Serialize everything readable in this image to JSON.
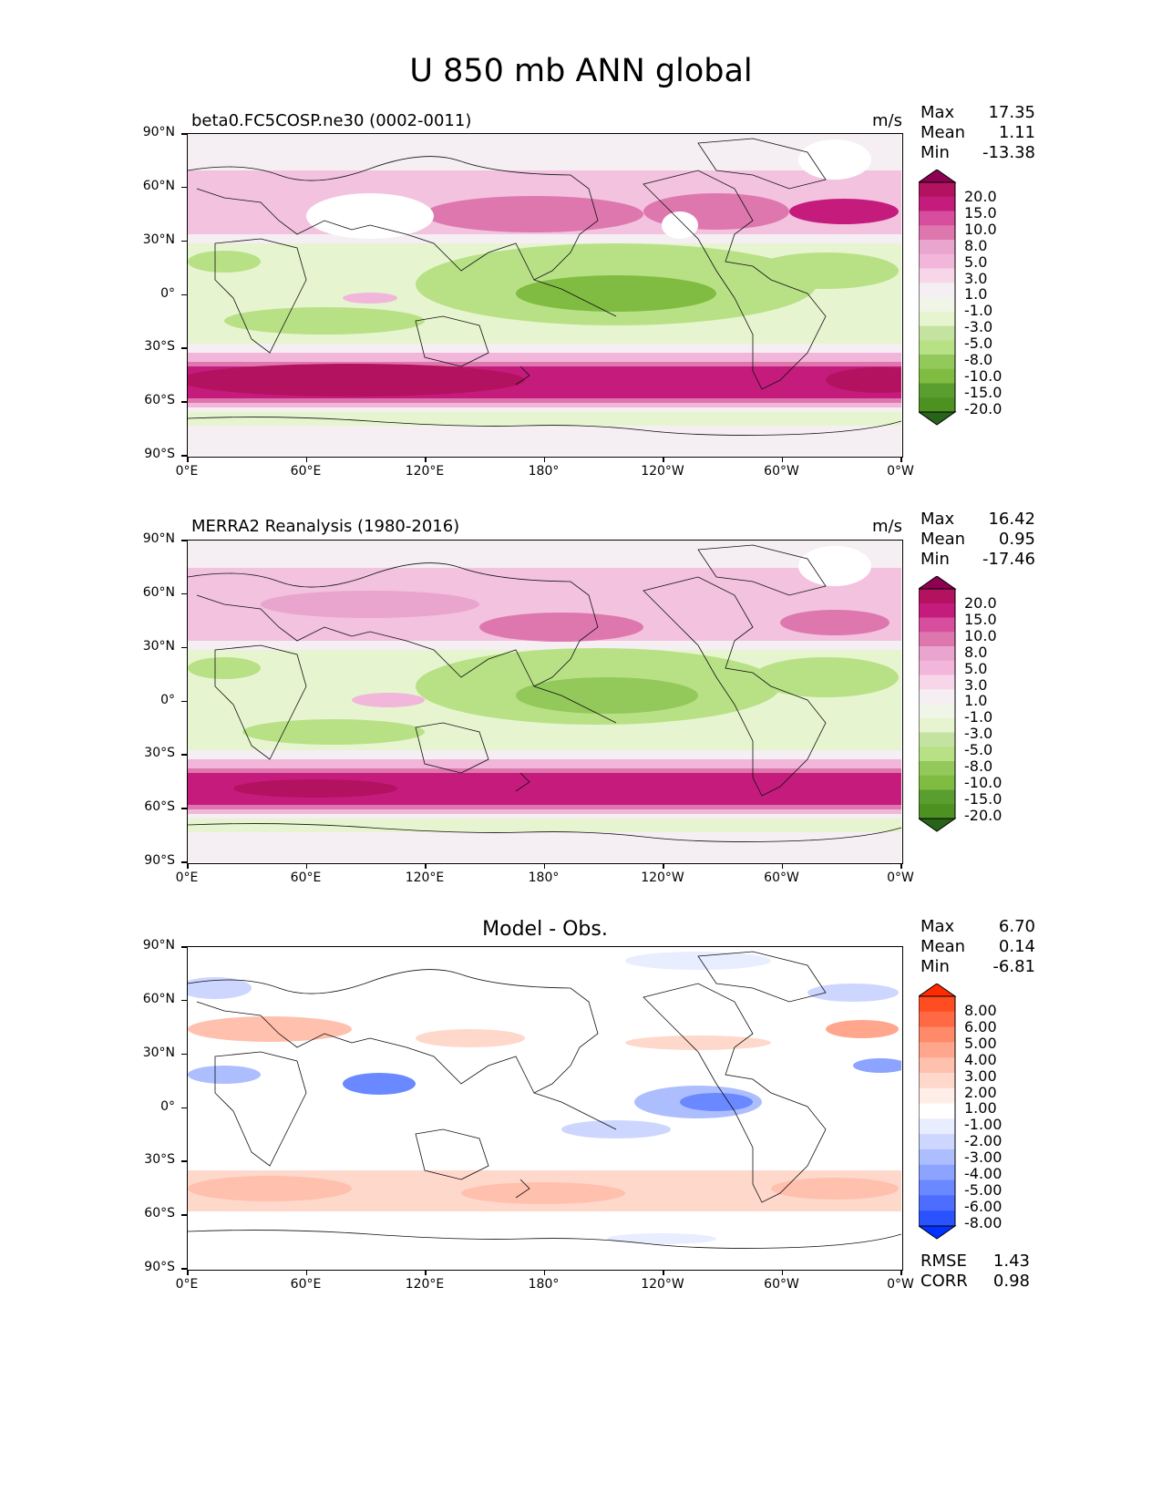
{
  "title": "U 850 mb ANN global",
  "panels": [
    {
      "id": "model",
      "title": "beta0.FC5COSP.ne30 (0002-0011)",
      "units": "m/s",
      "stats": [
        {
          "label": "Max",
          "value": "17.35"
        },
        {
          "label": "Mean",
          "value": "1.11"
        },
        {
          "label": "Min",
          "value": "-13.38"
        }
      ],
      "colorbar": {
        "labels": [
          "20.0",
          "15.0",
          "10.0",
          "8.0",
          "5.0",
          "3.0",
          "1.0",
          "-1.0",
          "-3.0",
          "-5.0",
          "-8.0",
          "-10.0",
          "-15.0",
          "-20.0"
        ],
        "colors": [
          "#8e0152",
          "#b2125f",
          "#c51b7d",
          "#d74e9e",
          "#de77ae",
          "#eaa5ce",
          "#f1b6da",
          "#f7d6ea",
          "#f5eef2",
          "#f0f5e8",
          "#e6f5d0",
          "#c5e3a0",
          "#b8e186",
          "#93c85a",
          "#7fbc41",
          "#5a9e30",
          "#4d9221",
          "#276419"
        ],
        "extend": "both"
      }
    },
    {
      "id": "obs",
      "title": "MERRA2 Reanalysis (1980-2016)",
      "units": "m/s",
      "stats": [
        {
          "label": "Max",
          "value": "16.42"
        },
        {
          "label": "Mean",
          "value": "0.95"
        },
        {
          "label": "Min",
          "value": "-17.46"
        }
      ],
      "colorbar": {
        "labels": [
          "20.0",
          "15.0",
          "10.0",
          "8.0",
          "5.0",
          "3.0",
          "1.0",
          "-1.0",
          "-3.0",
          "-5.0",
          "-8.0",
          "-10.0",
          "-15.0",
          "-20.0"
        ],
        "colors": [
          "#8e0152",
          "#b2125f",
          "#c51b7d",
          "#d74e9e",
          "#de77ae",
          "#eaa5ce",
          "#f1b6da",
          "#f7d6ea",
          "#f5eef2",
          "#f0f5e8",
          "#e6f5d0",
          "#c5e3a0",
          "#b8e186",
          "#93c85a",
          "#7fbc41",
          "#5a9e30",
          "#4d9221",
          "#276419"
        ],
        "extend": "both"
      }
    },
    {
      "id": "diff",
      "title": "Model - Obs.",
      "units": "",
      "stats": [
        {
          "label": "Max",
          "value": "6.70"
        },
        {
          "label": "Mean",
          "value": "0.14"
        },
        {
          "label": "Min",
          "value": "-6.81"
        }
      ],
      "extra_stats": [
        {
          "label": "RMSE",
          "value": "1.43"
        },
        {
          "label": "CORR",
          "value": "0.98"
        }
      ],
      "colorbar": {
        "labels": [
          "8.00",
          "6.00",
          "5.00",
          "4.00",
          "3.00",
          "2.00",
          "1.00",
          "-1.00",
          "-2.00",
          "-3.00",
          "-4.00",
          "-5.00",
          "-6.00",
          "-8.00"
        ],
        "colors": [
          "#ff2a00",
          "#ff4d22",
          "#ff6a45",
          "#ff8a6a",
          "#ffa68c",
          "#ffc0ad",
          "#ffd8cc",
          "#ffeee8",
          "#ffffff",
          "#e8edff",
          "#ccd6ff",
          "#adbeff",
          "#8ca4ff",
          "#6a88ff",
          "#4d6dff",
          "#2a52ff",
          "#0033ff"
        ],
        "extend": "both"
      }
    }
  ],
  "axes": {
    "y_ticks": [
      "90°N",
      "60°N",
      "30°N",
      "0°",
      "30°S",
      "60°S",
      "90°S"
    ],
    "x_ticks": [
      "0°E",
      "60°E",
      "120°E",
      "180°",
      "120°W",
      "60°W",
      "0°W"
    ]
  }
}
